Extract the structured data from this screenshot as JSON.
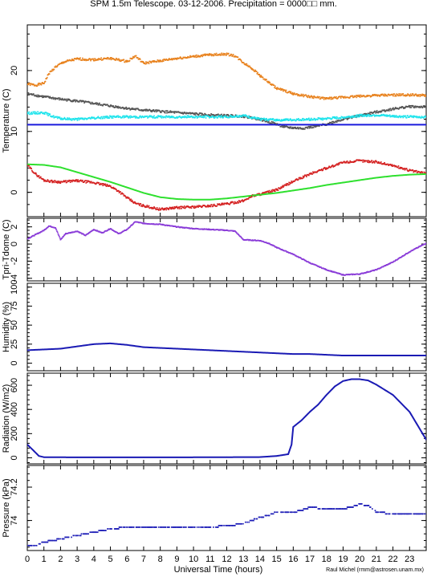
{
  "figure": {
    "title": "SPM 1.5m Telescope. 03-12-2006. Precipitation = 0000□□ mm.",
    "xlabel": "Universal Time (hours)",
    "credit": "Raul Michel (rmm@astrosen.unam.mx)"
  },
  "chart_data": [
    {
      "type": "line",
      "ylabel": "Temperature (C)",
      "xlim": [
        0,
        24
      ],
      "ylim": [
        -4,
        27.5
      ],
      "yticks": [
        0,
        10,
        20
      ],
      "series": [
        {
          "color": "#e8821e",
          "marker": "dots",
          "points": [
            [
              0,
              17.8
            ],
            [
              0.5,
              17.6
            ],
            [
              1,
              17.9
            ],
            [
              1.3,
              19.5
            ],
            [
              1.7,
              20.6
            ],
            [
              2.2,
              21.4
            ],
            [
              3,
              21.9
            ],
            [
              4,
              21.8
            ],
            [
              5,
              22.0
            ],
            [
              6,
              21.5
            ],
            [
              6.5,
              22.4
            ],
            [
              7,
              21.2
            ],
            [
              8,
              21.6
            ],
            [
              9,
              22.0
            ],
            [
              10,
              22.3
            ],
            [
              11,
              22.6
            ],
            [
              12,
              22.7
            ],
            [
              12.5,
              22.4
            ],
            [
              13,
              21.3
            ],
            [
              13.5,
              20.4
            ],
            [
              14,
              19.2
            ],
            [
              14.5,
              18.1
            ],
            [
              15,
              17.1
            ],
            [
              16,
              16.2
            ],
            [
              17,
              15.7
            ],
            [
              18,
              15.4
            ],
            [
              19,
              15.6
            ],
            [
              20,
              15.8
            ],
            [
              21,
              15.9
            ],
            [
              22,
              16.0
            ],
            [
              23,
              16.0
            ],
            [
              24,
              15.9
            ]
          ]
        },
        {
          "color": "#555555",
          "marker": "dots",
          "points": [
            [
              0,
              16.2
            ],
            [
              1,
              15.7
            ],
            [
              2,
              15.3
            ],
            [
              3,
              15.0
            ],
            [
              4,
              14.6
            ],
            [
              5,
              14.2
            ],
            [
              6,
              13.8
            ],
            [
              7,
              13.5
            ],
            [
              8,
              13.3
            ],
            [
              9,
              13.1
            ],
            [
              10,
              12.9
            ],
            [
              11,
              12.7
            ],
            [
              12,
              12.6
            ],
            [
              13,
              12.5
            ],
            [
              14,
              12.0
            ],
            [
              15,
              11.2
            ],
            [
              15.5,
              10.7
            ],
            [
              16,
              10.6
            ],
            [
              16.5,
              10.5
            ],
            [
              17,
              10.7
            ],
            [
              17.5,
              10.9
            ],
            [
              18,
              11.2
            ],
            [
              19,
              12.0
            ],
            [
              20,
              12.6
            ],
            [
              21,
              13.2
            ],
            [
              22,
              13.7
            ],
            [
              23,
              14.1
            ],
            [
              24,
              14.0
            ]
          ]
        },
        {
          "color": "#1ee4ec",
          "marker": "dots",
          "points": [
            [
              0,
              13.0
            ],
            [
              1,
              13.1
            ],
            [
              1.5,
              12.5
            ],
            [
              2,
              12.1
            ],
            [
              3,
              12.0
            ],
            [
              4,
              12.2
            ],
            [
              5,
              12.4
            ],
            [
              6,
              12.4
            ],
            [
              8,
              12.4
            ],
            [
              10,
              12.4
            ],
            [
              12,
              12.4
            ],
            [
              13,
              12.6
            ],
            [
              13.5,
              12.3
            ],
            [
              14,
              12.0
            ],
            [
              15,
              11.9
            ],
            [
              16,
              11.9
            ],
            [
              17,
              12.0
            ],
            [
              18,
              12.1
            ],
            [
              19,
              12.3
            ],
            [
              20,
              12.6
            ],
            [
              21,
              12.7
            ],
            [
              22,
              12.5
            ],
            [
              23,
              12.4
            ],
            [
              24,
              12.4
            ]
          ]
        },
        {
          "color": "#1a1adc",
          "marker": "line",
          "points": [
            [
              0,
              11.1
            ],
            [
              24,
              11.1
            ]
          ]
        },
        {
          "color": "#d42020",
          "marker": "dots",
          "points": [
            [
              0,
              4.5
            ],
            [
              0.5,
              3.0
            ],
            [
              1,
              2.0
            ],
            [
              1.5,
              1.8
            ],
            [
              2,
              1.7
            ],
            [
              3,
              1.9
            ],
            [
              4,
              1.6
            ],
            [
              5,
              1.0
            ],
            [
              5.5,
              0.2
            ],
            [
              6,
              -0.9
            ],
            [
              6.5,
              -1.8
            ],
            [
              7,
              -2.2
            ],
            [
              8,
              -2.8
            ],
            [
              9,
              -2.5
            ],
            [
              10,
              -2.4
            ],
            [
              11,
              -2.2
            ],
            [
              12,
              -1.9
            ],
            [
              13,
              -1.4
            ],
            [
              13.5,
              -0.6
            ],
            [
              14,
              -0.3
            ],
            [
              15,
              0.4
            ],
            [
              16,
              1.8
            ],
            [
              17,
              3.0
            ],
            [
              18,
              4.0
            ],
            [
              19,
              4.9
            ],
            [
              20,
              5.2
            ],
            [
              21,
              5.0
            ],
            [
              22,
              4.4
            ],
            [
              23,
              3.6
            ],
            [
              24,
              3.1
            ]
          ]
        },
        {
          "color": "#2ee02e",
          "marker": "line",
          "points": [
            [
              0,
              4.6
            ],
            [
              1,
              4.5
            ],
            [
              2,
              4.1
            ],
            [
              3,
              3.3
            ],
            [
              4,
              2.5
            ],
            [
              5,
              1.7
            ],
            [
              6,
              0.8
            ],
            [
              7,
              -0.1
            ],
            [
              8,
              -0.8
            ],
            [
              9,
              -1.1
            ],
            [
              10,
              -1.2
            ],
            [
              11,
              -1.2
            ],
            [
              12,
              -1.0
            ],
            [
              13,
              -0.7
            ],
            [
              14,
              -0.4
            ],
            [
              15,
              -0.1
            ],
            [
              16,
              0.3
            ],
            [
              17,
              0.7
            ],
            [
              18,
              1.2
            ],
            [
              19,
              1.6
            ],
            [
              20,
              2.0
            ],
            [
              21,
              2.4
            ],
            [
              22,
              2.7
            ],
            [
              23,
              2.9
            ],
            [
              24,
              3.0
            ]
          ]
        }
      ]
    },
    {
      "type": "line",
      "ylabel": "Tpri-Tdome (C)",
      "xlim": [
        0,
        24
      ],
      "ylim": [
        -4.3,
        3.0
      ],
      "yticks": [
        -4,
        -2,
        0,
        2
      ],
      "series": [
        {
          "color": "#8a3cd8",
          "marker": "dots",
          "points": [
            [
              0,
              0.6
            ],
            [
              0.5,
              1.1
            ],
            [
              1,
              1.6
            ],
            [
              1.3,
              2.1
            ],
            [
              1.7,
              1.9
            ],
            [
              2,
              0.5
            ],
            [
              2.3,
              1.2
            ],
            [
              3,
              1.5
            ],
            [
              3.5,
              1.0
            ],
            [
              4,
              1.7
            ],
            [
              4.5,
              1.3
            ],
            [
              5,
              1.8
            ],
            [
              5.5,
              1.2
            ],
            [
              6,
              1.7
            ],
            [
              6.5,
              2.6
            ],
            [
              7,
              2.4
            ],
            [
              8,
              2.3
            ],
            [
              9,
              2.0
            ],
            [
              10,
              1.8
            ],
            [
              11,
              1.7
            ],
            [
              12,
              1.6
            ],
            [
              12.5,
              1.5
            ],
            [
              13,
              0.5
            ],
            [
              14,
              0.4
            ],
            [
              14.5,
              0.1
            ],
            [
              15,
              -0.4
            ],
            [
              16,
              -1.2
            ],
            [
              17,
              -2.2
            ],
            [
              18,
              -3.0
            ],
            [
              19,
              -3.6
            ],
            [
              20,
              -3.5
            ],
            [
              21,
              -3.0
            ],
            [
              22,
              -2.1
            ],
            [
              23,
              -0.9
            ],
            [
              24,
              0.1
            ]
          ]
        }
      ]
    },
    {
      "type": "line",
      "ylabel": "Humidity (%)",
      "xlim": [
        0,
        24
      ],
      "ylim": [
        -10,
        105
      ],
      "yticks": [
        0,
        25,
        50,
        75,
        100
      ],
      "series": [
        {
          "color": "#1a1ab4",
          "marker": "line",
          "points": [
            [
              0,
              17
            ],
            [
              1,
              18
            ],
            [
              2,
              19
            ],
            [
              3,
              22
            ],
            [
              4,
              25
            ],
            [
              5,
              26
            ],
            [
              6,
              24
            ],
            [
              7,
              21
            ],
            [
              8,
              20
            ],
            [
              9,
              19
            ],
            [
              10,
              18
            ],
            [
              11,
              17
            ],
            [
              12,
              16
            ],
            [
              13,
              15
            ],
            [
              14,
              14
            ],
            [
              15,
              13
            ],
            [
              16,
              12
            ],
            [
              17,
              12
            ],
            [
              18,
              11
            ],
            [
              19,
              10
            ],
            [
              20,
              10
            ],
            [
              21,
              10
            ],
            [
              22,
              10
            ],
            [
              23,
              10
            ],
            [
              24,
              10
            ]
          ]
        }
      ]
    },
    {
      "type": "line",
      "ylabel": "Radiation (W/m2)",
      "xlim": [
        0,
        24
      ],
      "ylim": [
        -50,
        700
      ],
      "yticks": [
        0,
        200,
        400,
        600
      ],
      "series": [
        {
          "color": "#1a1ab4",
          "marker": "line",
          "points": [
            [
              0,
              110
            ],
            [
              0.3,
              70
            ],
            [
              0.7,
              15
            ],
            [
              1,
              5
            ],
            [
              3,
              4
            ],
            [
              6,
              4
            ],
            [
              9,
              4
            ],
            [
              12,
              5
            ],
            [
              14,
              6
            ],
            [
              15,
              15
            ],
            [
              15.7,
              30
            ],
            [
              15.9,
              110
            ],
            [
              16,
              255
            ],
            [
              16.5,
              310
            ],
            [
              17,
              380
            ],
            [
              17.5,
              440
            ],
            [
              18,
              520
            ],
            [
              18.5,
              590
            ],
            [
              19,
              635
            ],
            [
              19.5,
              650
            ],
            [
              20,
              650
            ],
            [
              20.5,
              640
            ],
            [
              21,
              605
            ],
            [
              22,
              520
            ],
            [
              23,
              380
            ],
            [
              24,
              150
            ]
          ]
        }
      ]
    },
    {
      "type": "scatter",
      "ylabel": "Pressure (kPa)",
      "xlim": [
        0,
        24
      ],
      "ylim": [
        73.82,
        74.33
      ],
      "yticks": [
        74,
        74.2
      ],
      "series": [
        {
          "color": "#2020b8",
          "marker": "dots",
          "points": [
            [
              0,
              73.85
            ],
            [
              0.5,
              73.85
            ],
            [
              1,
              73.87
            ],
            [
              1.5,
              73.88
            ],
            [
              2,
              73.89
            ],
            [
              2.5,
              73.9
            ],
            [
              3,
              73.91
            ],
            [
              3.5,
              73.92
            ],
            [
              4,
              73.93
            ],
            [
              4.5,
              73.94
            ],
            [
              5,
              73.95
            ],
            [
              6,
              73.96
            ],
            [
              7,
              73.96
            ],
            [
              8,
              73.96
            ],
            [
              9,
              73.96
            ],
            [
              10,
              73.96
            ],
            [
              11,
              73.96
            ],
            [
              12,
              73.97
            ],
            [
              13,
              73.98
            ],
            [
              13.5,
              74.0
            ],
            [
              14,
              74.02
            ],
            [
              14.5,
              74.03
            ],
            [
              15,
              74.05
            ],
            [
              16,
              74.05
            ],
            [
              16.5,
              74.06
            ],
            [
              17,
              74.08
            ],
            [
              18,
              74.07
            ],
            [
              19,
              74.07
            ],
            [
              19.5,
              74.08
            ],
            [
              20,
              74.1
            ],
            [
              20.5,
              74.09
            ],
            [
              21,
              74.05
            ],
            [
              22,
              74.04
            ],
            [
              23,
              74.04
            ],
            [
              24,
              74.04
            ]
          ]
        }
      ]
    }
  ]
}
